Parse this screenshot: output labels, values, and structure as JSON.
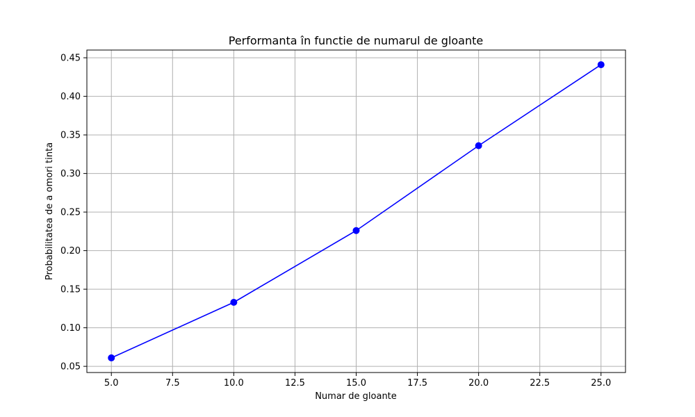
{
  "chart_data": {
    "type": "line",
    "title": "Performanta în functie de numarul de gloante",
    "xlabel": "Numar de gloante",
    "ylabel": "Probabilitatea de a omori tinta",
    "x": [
      5,
      10,
      15,
      20,
      25
    ],
    "series": [
      {
        "values": [
          0.061,
          0.133,
          0.226,
          0.336,
          0.441
        ],
        "color": "#0000ff",
        "marker": "circle"
      }
    ],
    "xlim": [
      4,
      26
    ],
    "ylim": [
      0.042,
      0.46
    ],
    "xticks": [
      5.0,
      7.5,
      10.0,
      12.5,
      15.0,
      17.5,
      20.0,
      22.5,
      25.0
    ],
    "xtick_labels": [
      "5.0",
      "7.5",
      "10.0",
      "12.5",
      "15.0",
      "17.5",
      "20.0",
      "22.5",
      "25.0"
    ],
    "yticks": [
      0.05,
      0.1,
      0.15,
      0.2,
      0.25,
      0.3,
      0.35,
      0.4,
      0.45
    ],
    "ytick_labels": [
      "0.05",
      "0.10",
      "0.15",
      "0.20",
      "0.25",
      "0.30",
      "0.35",
      "0.40",
      "0.45"
    ],
    "grid": true
  }
}
